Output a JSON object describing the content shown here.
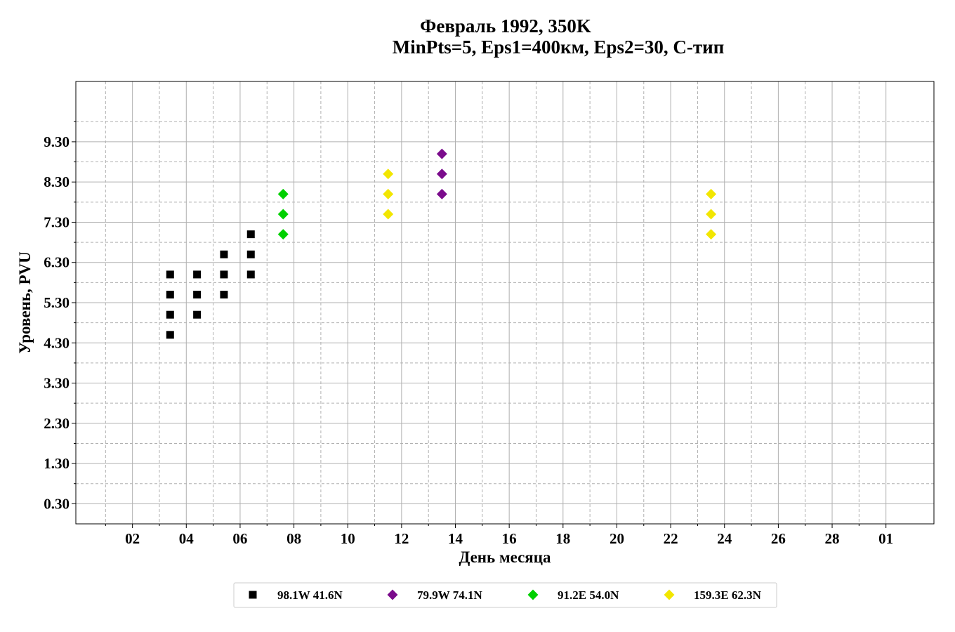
{
  "chart_data": {
    "type": "scatter",
    "title": "Февраль 1992, 350K",
    "subtitle": "MinPts=5, Eps1=400км, Eps2=30, C-тип",
    "xlabel": "День месяца",
    "ylabel": "Уровень, PVU",
    "x_range_days": [
      0,
      31
    ],
    "x_ticks": [
      {
        "day": 2,
        "label": "02"
      },
      {
        "day": 4,
        "label": "04"
      },
      {
        "day": 6,
        "label": "06"
      },
      {
        "day": 8,
        "label": "08"
      },
      {
        "day": 10,
        "label": "10"
      },
      {
        "day": 12,
        "label": "12"
      },
      {
        "day": 14,
        "label": "14"
      },
      {
        "day": 16,
        "label": "16"
      },
      {
        "day": 18,
        "label": "18"
      },
      {
        "day": 20,
        "label": "20"
      },
      {
        "day": 22,
        "label": "22"
      },
      {
        "day": 24,
        "label": "24"
      },
      {
        "day": 26,
        "label": "26"
      },
      {
        "day": 28,
        "label": "28"
      },
      {
        "day": 30,
        "label": "01"
      }
    ],
    "ylim": [
      -0.2,
      10.8
    ],
    "y_ticks": [
      0.3,
      1.3,
      2.3,
      3.3,
      4.3,
      5.3,
      6.3,
      7.3,
      8.3,
      9.3
    ],
    "y_tick_labels": [
      "0.30",
      "1.30",
      "2.30",
      "3.30",
      "4.30",
      "5.30",
      "6.30",
      "7.30",
      "8.30",
      "9.30"
    ],
    "grid": true,
    "legend_position": "bottom-center",
    "series": [
      {
        "name": "98.1W 41.6N",
        "color": "#000000",
        "marker": "square",
        "points": [
          {
            "x": 3.4,
            "y": 4.5
          },
          {
            "x": 3.4,
            "y": 5.0
          },
          {
            "x": 3.4,
            "y": 5.5
          },
          {
            "x": 3.4,
            "y": 6.0
          },
          {
            "x": 4.4,
            "y": 5.0
          },
          {
            "x": 4.4,
            "y": 5.5
          },
          {
            "x": 4.4,
            "y": 6.0
          },
          {
            "x": 5.4,
            "y": 5.5
          },
          {
            "x": 5.4,
            "y": 6.0
          },
          {
            "x": 5.4,
            "y": 6.5
          },
          {
            "x": 6.4,
            "y": 6.0
          },
          {
            "x": 6.4,
            "y": 6.5
          },
          {
            "x": 6.4,
            "y": 7.0
          }
        ]
      },
      {
        "name": "79.9W 74.1N",
        "color": "#7B0C8C",
        "marker": "diamond",
        "points": [
          {
            "x": 13.5,
            "y": 8.0
          },
          {
            "x": 13.5,
            "y": 8.5
          },
          {
            "x": 13.5,
            "y": 9.0
          }
        ]
      },
      {
        "name": "91.2E 54.0N",
        "color": "#00D000",
        "marker": "diamond",
        "points": [
          {
            "x": 7.6,
            "y": 7.0
          },
          {
            "x": 7.6,
            "y": 7.5
          },
          {
            "x": 7.6,
            "y": 8.0
          }
        ]
      },
      {
        "name": "159.3E 62.3N",
        "color": "#F2E600",
        "marker": "diamond",
        "points": [
          {
            "x": 11.5,
            "y": 7.5
          },
          {
            "x": 11.5,
            "y": 8.0
          },
          {
            "x": 11.5,
            "y": 8.5
          },
          {
            "x": 23.5,
            "y": 7.0
          },
          {
            "x": 23.5,
            "y": 7.5
          },
          {
            "x": 23.5,
            "y": 8.0
          }
        ]
      }
    ]
  }
}
